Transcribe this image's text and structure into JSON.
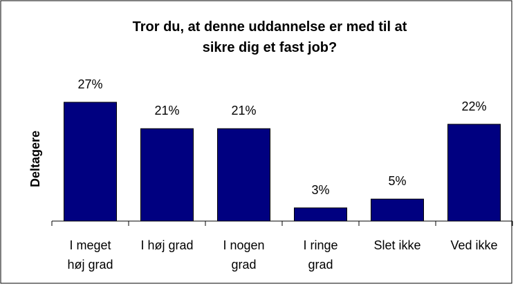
{
  "chart_data": {
    "type": "bar",
    "title": "Tror du, at denne uddannelse er med til at\nsikre dig et fast job?",
    "y_label": "Deltagere",
    "categories": [
      "I meget\nhøj grad",
      "I høj grad",
      "I nogen\ngrad",
      "I ringe\ngrad",
      "Slet ikke",
      "Ved ikke"
    ],
    "values": [
      27,
      21,
      21,
      3,
      5,
      22
    ],
    "value_labels": [
      "27%",
      "21%",
      "21%",
      "3%",
      "5%",
      "22%"
    ],
    "color": "#000080"
  }
}
